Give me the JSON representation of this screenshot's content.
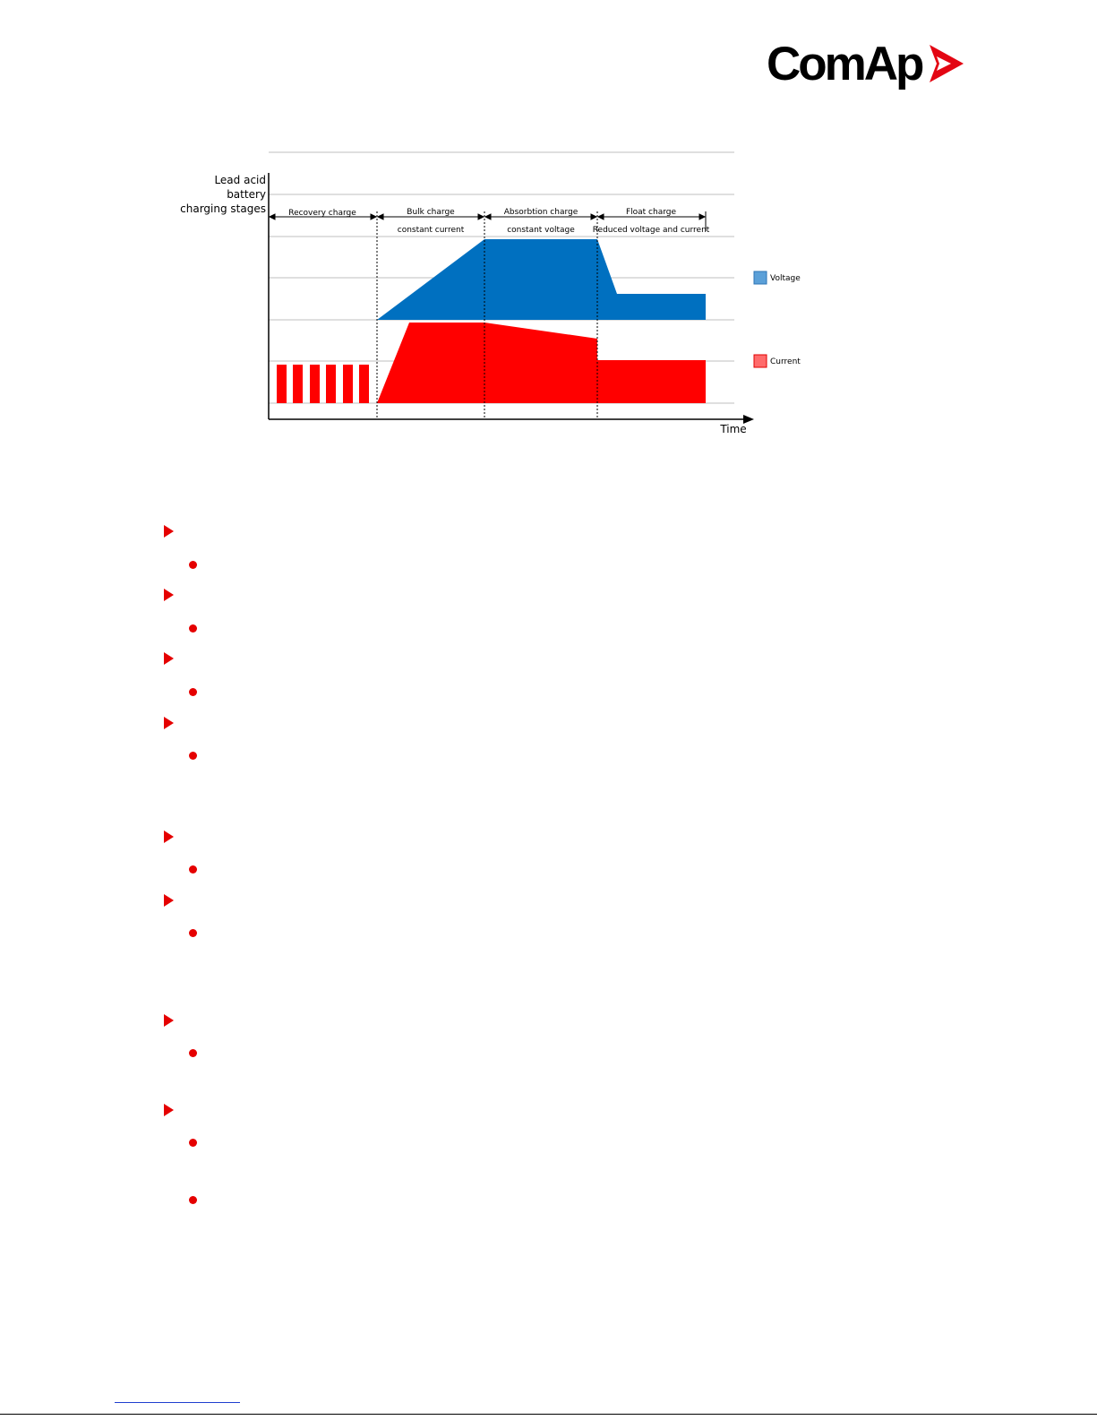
{
  "brand": {
    "name": "ComAp",
    "logo_color": "#e30613"
  },
  "diagram": {
    "ylabel": [
      "Lead acid",
      "battery",
      "charging stages"
    ],
    "xlabel": "Time",
    "stages": [
      {
        "name": "Recovery charge",
        "sub": ""
      },
      {
        "name": "Bulk charge",
        "sub": "constant current"
      },
      {
        "name": "Absorbtion charge",
        "sub": "constant voltage"
      },
      {
        "name": "Float charge",
        "sub": "Reduced voltage and current"
      }
    ],
    "legend": [
      {
        "name": "Voltage",
        "color": "#0070c0"
      },
      {
        "name": "Current",
        "color": "#ff0000"
      }
    ]
  },
  "colors": {
    "voltage": "#0070c0",
    "current": "#ff0000",
    "bullet": "#e50000"
  }
}
